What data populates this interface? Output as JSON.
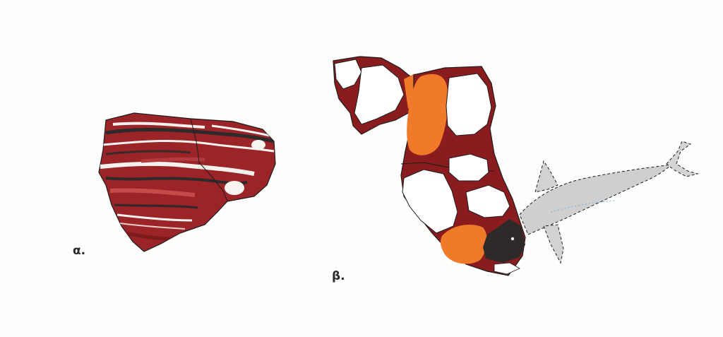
{
  "labels": {
    "fragment_a": "α.",
    "fragment_b": "β."
  },
  "colors": {
    "background": "#fdfdfb",
    "dark_red": "#8a1c1f",
    "mid_red": "#a82a2c",
    "orange": "#f07a2a",
    "black_paint": "#2f2a2a",
    "fish_grey": "#cfcfcf",
    "outline": "#1d1d1d"
  }
}
